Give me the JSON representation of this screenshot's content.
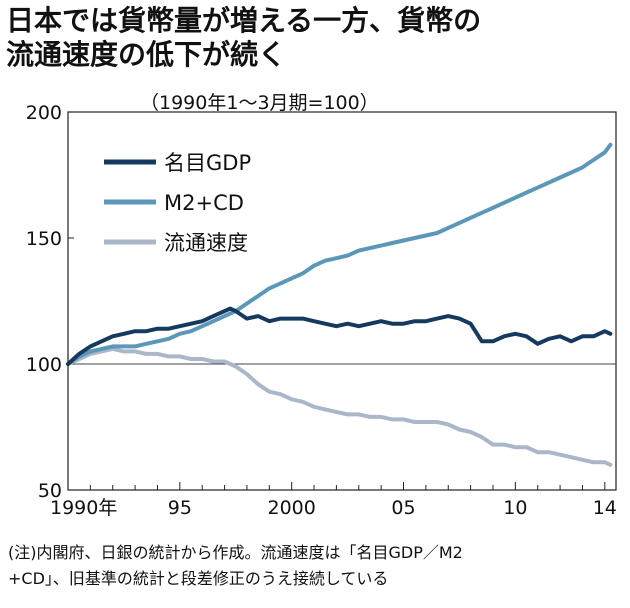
{
  "title": "日本では貨幣量が増える一方、貨幣の\n流通速度の低下が続く",
  "subtitle": "（1990年1～3月期=100）",
  "note": "(注)内閣府、日銀の統計から作成。流通速度は「名目GDP／M2\n+CD」、旧基準の統計と段差修正のうえ接続している",
  "colors": {
    "gdp": "#163a5f",
    "m2cd": "#5b97b8",
    "velocity": "#a9b7c9",
    "axis": "#222222",
    "reference": "#444444"
  },
  "chart_data": {
    "type": "line",
    "title": "日本では貨幣量が増える一方、貨幣の流通速度の低下が続く",
    "ylim": [
      50,
      200
    ],
    "xlim": [
      1990,
      2014.5
    ],
    "y_ticks": [
      {
        "value": 200,
        "label": "200"
      },
      {
        "value": 150,
        "label": "150"
      },
      {
        "value": 100,
        "label": "100"
      },
      {
        "value": 50,
        "label": "50"
      }
    ],
    "x_ticks": [
      {
        "value": 1990,
        "label": "1990年"
      },
      {
        "value": 1995,
        "label": "95"
      },
      {
        "value": 2000,
        "label": "2000"
      },
      {
        "value": 2005,
        "label": "05"
      },
      {
        "value": 2010,
        "label": "10"
      },
      {
        "value": 2014,
        "label": "14"
      }
    ],
    "reference_line": 100,
    "legend_position": "top-left",
    "series": [
      {
        "name": "名目GDP",
        "key": "gdp",
        "x": [
          1990,
          1990.5,
          1991,
          1991.5,
          1992,
          1992.5,
          1993,
          1993.5,
          1994,
          1994.5,
          1995,
          1995.5,
          1996,
          1996.5,
          1997,
          1997.25,
          1997.5,
          1998,
          1998.5,
          1999,
          1999.5,
          2000,
          2000.5,
          2001,
          2001.5,
          2002,
          2002.5,
          2003,
          2003.5,
          2004,
          2004.5,
          2005,
          2005.5,
          2006,
          2006.5,
          2007,
          2007.5,
          2008,
          2008.5,
          2009,
          2009.5,
          2010,
          2010.5,
          2011,
          2011.5,
          2012,
          2012.5,
          2013,
          2013.5,
          2014,
          2014.25
        ],
        "values": [
          100,
          104,
          107,
          109,
          111,
          112,
          113,
          113,
          114,
          114,
          115,
          116,
          117,
          119,
          121,
          122,
          121,
          118,
          119,
          117,
          118,
          118,
          118,
          117,
          116,
          115,
          116,
          115,
          116,
          117,
          116,
          116,
          117,
          117,
          118,
          119,
          118,
          116,
          109,
          109,
          111,
          112,
          111,
          108,
          110,
          111,
          109,
          111,
          111,
          113,
          112
        ]
      },
      {
        "name": "M2+CD",
        "key": "m2cd",
        "x": [
          1990,
          1990.5,
          1991,
          1991.5,
          1992,
          1992.5,
          1993,
          1993.5,
          1994,
          1994.5,
          1995,
          1995.5,
          1996,
          1996.5,
          1997,
          1997.5,
          1998,
          1998.5,
          1999,
          1999.5,
          2000,
          2000.5,
          2001,
          2001.5,
          2002,
          2002.5,
          2003,
          2003.5,
          2004,
          2004.5,
          2005,
          2005.5,
          2006,
          2006.5,
          2007,
          2007.5,
          2008,
          2008.5,
          2009,
          2009.5,
          2010,
          2010.5,
          2011,
          2011.5,
          2012,
          2012.5,
          2013,
          2013.5,
          2014,
          2014.25
        ],
        "values": [
          100,
          103,
          105,
          106,
          107,
          107,
          107,
          108,
          109,
          110,
          112,
          113,
          115,
          117,
          119,
          121,
          124,
          127,
          130,
          132,
          134,
          136,
          139,
          141,
          142,
          143,
          145,
          146,
          147,
          148,
          149,
          150,
          151,
          152,
          154,
          156,
          158,
          160,
          162,
          164,
          166,
          168,
          170,
          172,
          174,
          176,
          178,
          181,
          184,
          187
        ]
      },
      {
        "name": "流通速度",
        "key": "velocity",
        "x": [
          1990,
          1990.5,
          1991,
          1991.5,
          1992,
          1992.5,
          1993,
          1993.5,
          1994,
          1994.5,
          1995,
          1995.5,
          1996,
          1996.5,
          1997,
          1997.5,
          1998,
          1998.5,
          1999,
          1999.5,
          2000,
          2000.5,
          2001,
          2001.5,
          2002,
          2002.5,
          2003,
          2003.5,
          2004,
          2004.5,
          2005,
          2005.5,
          2006,
          2006.5,
          2007,
          2007.5,
          2008,
          2008.5,
          2009,
          2009.5,
          2010,
          2010.5,
          2011,
          2011.5,
          2012,
          2012.5,
          2013,
          2013.5,
          2014,
          2014.25
        ],
        "values": [
          100,
          102,
          104,
          105,
          106,
          105,
          105,
          104,
          104,
          103,
          103,
          102,
          102,
          101,
          101,
          99,
          96,
          92,
          89,
          88,
          86,
          85,
          83,
          82,
          81,
          80,
          80,
          79,
          79,
          78,
          78,
          77,
          77,
          77,
          76,
          74,
          73,
          71,
          68,
          68,
          67,
          67,
          65,
          65,
          64,
          63,
          62,
          61,
          61,
          60
        ]
      }
    ]
  }
}
